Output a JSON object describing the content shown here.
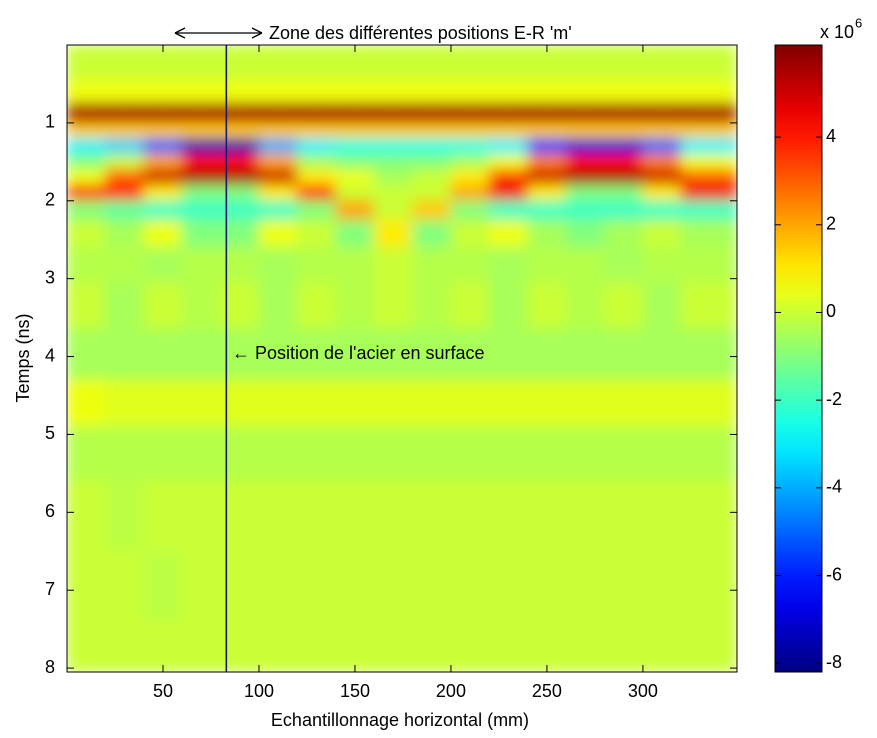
{
  "chart_data": {
    "type": "heatmap",
    "xlabel": "Echantillonnage horizontal (mm)",
    "ylabel": "Temps (ns)",
    "xlim": [
      0,
      349
    ],
    "ylim": [
      0,
      8.05
    ],
    "xticks": [
      50,
      100,
      150,
      200,
      250,
      300
    ],
    "yticks": [
      1,
      2,
      3,
      4,
      5,
      6,
      7,
      8
    ],
    "y_reversed": true,
    "colormap": "jet",
    "clim": [
      -8.2,
      6.1
    ],
    "cticks": [
      -8,
      -6,
      -4,
      -2,
      0,
      2,
      4
    ],
    "colorbar_label": {
      "base": "x 10",
      "exponent": "6"
    },
    "x": [
      10,
      30,
      50,
      70,
      90,
      110,
      130,
      150,
      170,
      190,
      210,
      230,
      250,
      270,
      290,
      310,
      330
    ],
    "y": [
      0.3,
      0.6,
      0.9,
      1.1,
      1.3,
      1.5,
      1.7,
      1.9,
      2.1,
      2.4,
      2.8,
      3.3,
      4,
      4.6,
      5.2,
      6,
      7,
      7.8
    ],
    "z": [
      [
        0,
        0,
        0,
        0,
        0,
        0,
        0,
        0,
        0,
        0,
        0,
        0,
        0,
        0,
        0,
        0,
        0
      ],
      [
        0.5,
        0.5,
        0.5,
        0.5,
        0.5,
        0.5,
        0.5,
        0.5,
        0.5,
        0.5,
        0.5,
        0.5,
        0.5,
        0.5,
        0.5,
        0.5,
        0.5
      ],
      [
        5.5,
        5.5,
        5.5,
        5.5,
        5.5,
        5.5,
        5.5,
        5.5,
        5.5,
        5.5,
        5.5,
        5.5,
        5.5,
        5.5,
        5.5,
        5.5,
        5.5
      ],
      [
        1.5,
        1.5,
        1.5,
        1.5,
        1.5,
        1.5,
        1.5,
        1.5,
        1.5,
        1.5,
        1.5,
        1.5,
        1.5,
        1.5,
        1.5,
        1.5,
        1.5
      ],
      [
        -3,
        -3.5,
        -5,
        -7.5,
        -7.5,
        -4,
        -3,
        -2.5,
        -2.5,
        -2.5,
        -2.5,
        -3,
        -5.5,
        -7,
        -7,
        -5,
        -3
      ],
      [
        -1,
        0,
        2,
        4,
        4,
        2,
        -0.5,
        -1,
        -1,
        -1,
        -0.5,
        0.5,
        2.5,
        4,
        4,
        2.5,
        0.5
      ],
      [
        0.5,
        3,
        5,
        5.5,
        5.5,
        5,
        1,
        0.5,
        -0.5,
        0,
        1,
        3.5,
        5,
        5.5,
        5.5,
        5,
        3
      ],
      [
        4,
        4,
        1,
        -1,
        -1,
        1,
        4,
        0,
        0,
        0,
        2,
        4.5,
        1,
        -1,
        -1,
        1,
        4.5
      ],
      [
        -1,
        -1.5,
        -2,
        -2,
        -2,
        -2,
        -1,
        2,
        0,
        1.5,
        -1,
        -2,
        -2,
        -2,
        -2,
        -2,
        -2
      ],
      [
        0,
        -0.5,
        0.5,
        -1,
        -1,
        0.5,
        0,
        -1,
        1,
        -1,
        0,
        0.5,
        -0.5,
        -1,
        -0.5,
        0,
        -0.5
      ],
      [
        -0.3,
        -0.3,
        -0.5,
        -0.3,
        -0.3,
        -0.5,
        -0.3,
        -0.3,
        0,
        -0.3,
        -0.3,
        -0.5,
        -0.3,
        -0.3,
        -0.5,
        -0.3,
        -0.3
      ],
      [
        0,
        -0.5,
        0,
        -0.3,
        0,
        -0.5,
        0,
        -0.3,
        0,
        -0.3,
        0,
        -0.5,
        0,
        -0.3,
        0,
        -0.5,
        0
      ],
      [
        -0.5,
        -0.5,
        -0.5,
        -0.5,
        -0.5,
        -0.5,
        -0.5,
        -0.5,
        -0.5,
        -0.5,
        -0.5,
        -0.5,
        -0.5,
        -0.5,
        -0.5,
        -0.5,
        -0.5
      ],
      [
        0.5,
        0.3,
        0.3,
        0.3,
        0.3,
        0.3,
        0.3,
        0.3,
        0.3,
        0.3,
        0.3,
        0.3,
        0.3,
        0.3,
        0.3,
        0.3,
        0.3
      ],
      [
        -0.3,
        -0.3,
        -0.3,
        -0.3,
        -0.3,
        -0.3,
        -0.3,
        -0.3,
        -0.3,
        -0.3,
        -0.3,
        -0.3,
        -0.3,
        -0.3,
        -0.3,
        -0.3,
        -0.3
      ],
      [
        0,
        -0.2,
        0,
        0,
        0,
        0,
        0,
        0,
        0,
        0,
        0,
        0,
        0,
        0,
        0,
        0,
        0
      ],
      [
        0,
        0,
        -0.2,
        0,
        0,
        0,
        0,
        0,
        0,
        0,
        0,
        0,
        0,
        0,
        0,
        0,
        0
      ],
      [
        0,
        0,
        0,
        0,
        0,
        0,
        0,
        0,
        0,
        0,
        0,
        0,
        0,
        0,
        0,
        0,
        0
      ]
    ],
    "vline_x": 83,
    "vline_color": "#1a1a70",
    "annotations": [
      "Zone des différentes positions E-R 'm'",
      "← Position de l'acier en surface"
    ]
  }
}
